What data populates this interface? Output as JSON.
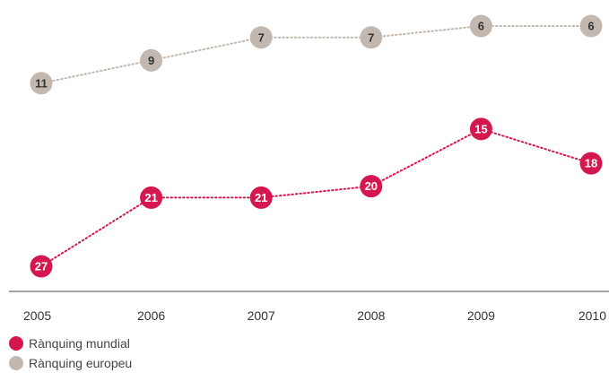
{
  "chart_data": {
    "type": "line",
    "categories": [
      "2005",
      "2006",
      "2007",
      "2008",
      "2009",
      "2010"
    ],
    "series": [
      {
        "name": "Rànquing mundial",
        "values": [
          27,
          21,
          21,
          20,
          15,
          18
        ],
        "color": "#d4184f"
      },
      {
        "name": "Rànquing europeu",
        "values": [
          11,
          9,
          7,
          7,
          6,
          6
        ],
        "color": "#c2b8b0"
      }
    ],
    "ylim": [
      5,
      28
    ],
    "y_inverted": true,
    "grid": false,
    "line_style": "dotted",
    "legend_position": "bottom-left",
    "marker_text_color": "#ffffff",
    "marker_text_color_light": "#333333"
  }
}
